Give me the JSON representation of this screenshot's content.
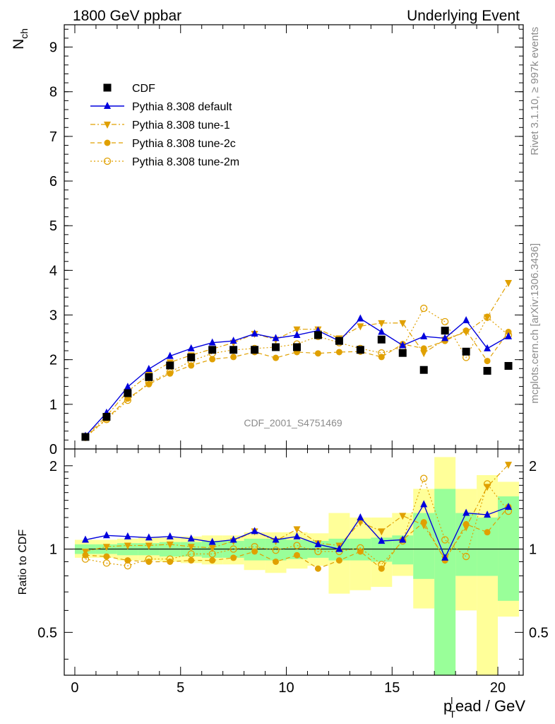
{
  "header": {
    "left_title": "1800 GeV ppbar",
    "right_title": "Underlying Event"
  },
  "side_labels": {
    "rivet": "Rivet 3.1.10, ≥ 997k events",
    "mcplots": "mcplots.cern.ch [arXiv:1306.3436]"
  },
  "analysis_label": "CDF_2001_S4751469",
  "colors": {
    "data": "#000000",
    "default": "#0000dd",
    "tunes": "#e0a000",
    "band_inner": "#99ff99",
    "band_outer": "#ffff99"
  },
  "chart_data": [
    {
      "type": "scatter",
      "panel": "main",
      "ylabel": "N",
      "ylabel_sub": "ch",
      "xlim": [
        -0.5,
        21.2
      ],
      "ylim": [
        0,
        9.5
      ],
      "x_ticks": [
        0,
        5,
        10,
        15,
        20
      ],
      "y_ticks": [
        0,
        1,
        2,
        3,
        4,
        5,
        6,
        7,
        8,
        9
      ],
      "legend_position": "top-left",
      "x": [
        0.5,
        1.5,
        2.5,
        3.5,
        4.5,
        5.5,
        6.5,
        7.5,
        8.5,
        9.5,
        10.5,
        11.5,
        12.5,
        13.5,
        14.5,
        15.5,
        16.5,
        17.5,
        18.5,
        19.5,
        20.5
      ],
      "series": [
        {
          "name": "CDF",
          "style": "data",
          "values": [
            0.27,
            0.72,
            1.25,
            1.61,
            1.87,
            2.05,
            2.22,
            2.22,
            2.22,
            2.28,
            2.28,
            2.55,
            2.42,
            2.22,
            2.45,
            2.15,
            1.77,
            2.65,
            2.18,
            1.75,
            1.86
          ]
        },
        {
          "name": "Pythia 8.308 default",
          "style": "default",
          "values": [
            0.29,
            0.81,
            1.39,
            1.79,
            2.08,
            2.25,
            2.38,
            2.42,
            2.58,
            2.48,
            2.55,
            2.65,
            2.42,
            2.92,
            2.62,
            2.32,
            2.52,
            2.48,
            2.88,
            2.25,
            2.52
          ]
        },
        {
          "name": "Pythia 8.308 tune-1",
          "style": "tune1",
          "values": [
            0.27,
            0.74,
            1.29,
            1.66,
            1.94,
            2.1,
            2.24,
            2.38,
            2.58,
            2.45,
            2.68,
            2.68,
            2.48,
            2.75,
            2.82,
            2.82,
            2.15,
            2.45,
            2.62,
            2.95,
            3.72
          ]
        },
        {
          "name": "Pythia 8.308 tune-2c",
          "style": "tune2c",
          "values": [
            0.26,
            0.68,
            1.13,
            1.45,
            1.69,
            1.87,
            2.01,
            2.06,
            2.17,
            2.04,
            2.17,
            2.14,
            2.17,
            2.18,
            2.06,
            2.35,
            2.25,
            2.42,
            2.65,
            1.97,
            2.62
          ]
        },
        {
          "name": "Pythia 8.308 tune-2m",
          "style": "tune2m",
          "values": [
            0.26,
            0.66,
            1.09,
            1.48,
            1.72,
            1.97,
            2.14,
            2.22,
            2.25,
            2.28,
            2.35,
            2.52,
            2.38,
            2.25,
            2.15,
            2.28,
            3.15,
            2.85,
            2.05,
            2.95,
            2.55
          ]
        }
      ]
    },
    {
      "type": "scatter",
      "panel": "ratio",
      "ylabel": "Ratio to CDF",
      "xlabel": "p",
      "xlabel_sub": "T",
      "xlabel_sup": "l",
      "xlabel_rest": "ead / GeV",
      "xlim": [
        -0.5,
        21.2
      ],
      "ylim": [
        0.35,
        2.3
      ],
      "x_ticks": [
        0,
        5,
        10,
        15,
        20
      ],
      "y_ticks": [
        0.5,
        1,
        2
      ],
      "x": [
        0.5,
        1.5,
        2.5,
        3.5,
        4.5,
        5.5,
        6.5,
        7.5,
        8.5,
        9.5,
        10.5,
        11.5,
        12.5,
        13.5,
        14.5,
        15.5,
        16.5,
        17.5,
        18.5,
        19.5,
        20.5
      ],
      "uncertainty_bands": {
        "inner": [
          [
            0.96,
            1.04
          ],
          [
            0.96,
            1.04
          ],
          [
            0.95,
            1.05
          ],
          [
            0.95,
            1.05
          ],
          [
            0.94,
            1.06
          ],
          [
            0.94,
            1.06
          ],
          [
            0.93,
            1.07
          ],
          [
            0.93,
            1.07
          ],
          [
            0.91,
            1.09
          ],
          [
            0.91,
            1.09
          ],
          [
            0.92,
            1.08
          ],
          [
            0.93,
            1.07
          ],
          [
            0.91,
            1.09
          ],
          [
            0.91,
            1.09
          ],
          [
            0.9,
            1.1
          ],
          [
            0.88,
            1.12
          ],
          [
            0.78,
            1.35
          ],
          [
            0.3,
            1.65
          ],
          [
            0.8,
            1.35
          ],
          [
            0.8,
            1.3
          ],
          [
            0.65,
            1.55
          ]
        ],
        "outer": [
          [
            0.93,
            1.08
          ],
          [
            0.93,
            1.08
          ],
          [
            0.91,
            1.09
          ],
          [
            0.91,
            1.1
          ],
          [
            0.9,
            1.1
          ],
          [
            0.89,
            1.11
          ],
          [
            0.88,
            1.12
          ],
          [
            0.88,
            1.12
          ],
          [
            0.84,
            1.15
          ],
          [
            0.82,
            1.15
          ],
          [
            0.85,
            1.15
          ],
          [
            0.87,
            1.14
          ],
          [
            0.69,
            1.35
          ],
          [
            0.71,
            1.3
          ],
          [
            0.73,
            1.3
          ],
          [
            0.8,
            1.35
          ],
          [
            0.61,
            1.65
          ],
          [
            0.3,
            2.15
          ],
          [
            0.6,
            1.65
          ],
          [
            0.3,
            1.85
          ],
          [
            0.57,
            1.75
          ]
        ]
      },
      "series": [
        {
          "name": "Pythia 8.308 default",
          "style": "default",
          "values": [
            1.08,
            1.12,
            1.11,
            1.1,
            1.11,
            1.09,
            1.06,
            1.08,
            1.16,
            1.08,
            1.11,
            1.04,
            1.0,
            1.3,
            1.07,
            1.08,
            1.45,
            0.93,
            1.35,
            1.33,
            1.42
          ]
        },
        {
          "name": "Pythia 8.308 tune-1",
          "style": "tune1",
          "values": [
            0.98,
            1.02,
            1.03,
            1.03,
            1.04,
            1.02,
            1.01,
            1.07,
            1.16,
            1.07,
            1.18,
            1.05,
            1.03,
            1.25,
            1.16,
            1.32,
            1.22,
            0.92,
            1.2,
            1.68,
            2.02
          ]
        },
        {
          "name": "Pythia 8.308 tune-2c",
          "style": "tune2c",
          "values": [
            0.95,
            0.94,
            0.91,
            0.9,
            0.9,
            0.91,
            0.91,
            0.93,
            0.98,
            0.9,
            0.95,
            0.85,
            0.91,
            0.98,
            0.85,
            1.08,
            1.25,
            0.91,
            1.23,
            1.15,
            1.42
          ]
        },
        {
          "name": "Pythia 8.308 tune-2m",
          "style": "tune2m",
          "values": [
            0.92,
            0.89,
            0.87,
            0.92,
            0.92,
            0.96,
            0.96,
            1.0,
            1.02,
            0.99,
            1.03,
            0.98,
            0.98,
            1.01,
            0.88,
            1.07,
            1.8,
            1.08,
            0.94,
            1.72,
            1.37
          ]
        }
      ]
    }
  ]
}
